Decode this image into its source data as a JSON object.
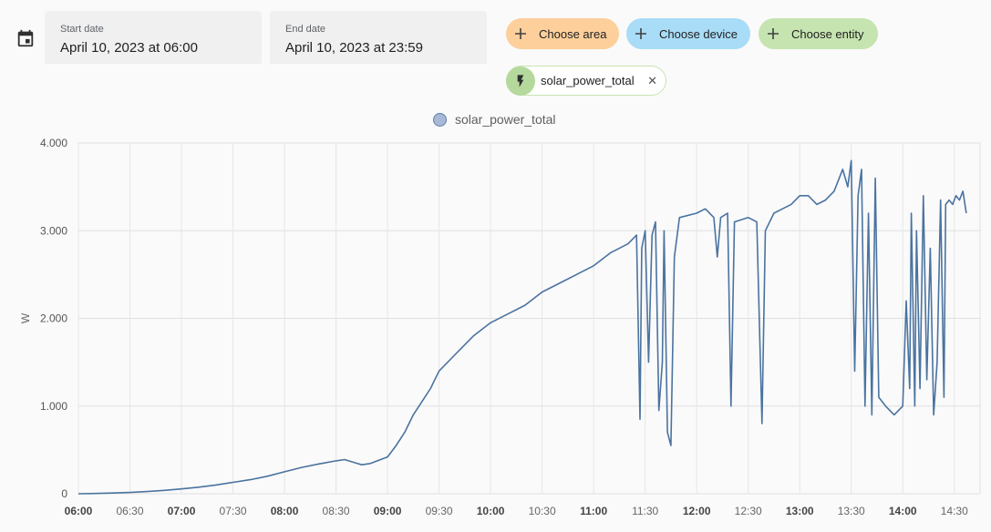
{
  "date_picker": {
    "start": {
      "label": "Start date",
      "value": "April 10, 2023 at 06:00"
    },
    "end": {
      "label": "End date",
      "value": "April 10, 2023 at 23:59"
    }
  },
  "target_picker": {
    "area_label": "Choose area",
    "device_label": "Choose device",
    "entity_label": "Choose entity",
    "selected_entity": "solar_power_total"
  },
  "colors": {
    "area": "#fdcf9b",
    "device": "#a8dcf7",
    "entity": "#c6e4b0",
    "series": "#4a73a0"
  },
  "chart_data": {
    "type": "line",
    "ylabel": "W",
    "ylim": [
      0,
      4000
    ],
    "yticks": [
      0,
      1000,
      2000,
      3000,
      4000
    ],
    "ytick_labels": [
      "0",
      "1.000",
      "2.000",
      "3.000",
      "4.000"
    ],
    "xlim": [
      "06:00",
      "14:45"
    ],
    "xticks": [
      "06:00",
      "06:30",
      "07:00",
      "07:30",
      "08:00",
      "08:30",
      "09:00",
      "09:30",
      "10:00",
      "10:30",
      "11:00",
      "11:30",
      "12:00",
      "12:30",
      "13:00",
      "13:30",
      "14:00",
      "14:30"
    ],
    "bold_xticks": [
      "06:00",
      "07:00",
      "08:00",
      "09:00",
      "10:00",
      "11:00",
      "12:00",
      "13:00",
      "14:00"
    ],
    "grid": true,
    "legend_position": "top",
    "series": [
      {
        "name": "solar_power_total",
        "points": [
          [
            "06:00",
            0
          ],
          [
            "06:10",
            3
          ],
          [
            "06:20",
            8
          ],
          [
            "06:30",
            15
          ],
          [
            "06:40",
            25
          ],
          [
            "06:50",
            38
          ],
          [
            "07:00",
            55
          ],
          [
            "07:10",
            75
          ],
          [
            "07:20",
            100
          ],
          [
            "07:30",
            130
          ],
          [
            "07:40",
            160
          ],
          [
            "07:50",
            200
          ],
          [
            "08:00",
            250
          ],
          [
            "08:10",
            300
          ],
          [
            "08:20",
            340
          ],
          [
            "08:30",
            375
          ],
          [
            "08:35",
            390
          ],
          [
            "08:40",
            360
          ],
          [
            "08:45",
            330
          ],
          [
            "08:50",
            345
          ],
          [
            "09:00",
            420
          ],
          [
            "09:05",
            550
          ],
          [
            "09:10",
            700
          ],
          [
            "09:15",
            900
          ],
          [
            "09:20",
            1050
          ],
          [
            "09:25",
            1200
          ],
          [
            "09:30",
            1400
          ],
          [
            "09:40",
            1600
          ],
          [
            "09:50",
            1800
          ],
          [
            "10:00",
            1950
          ],
          [
            "10:10",
            2050
          ],
          [
            "10:20",
            2150
          ],
          [
            "10:30",
            2300
          ],
          [
            "10:40",
            2400
          ],
          [
            "10:50",
            2500
          ],
          [
            "11:00",
            2600
          ],
          [
            "11:10",
            2750
          ],
          [
            "11:20",
            2850
          ],
          [
            "11:25",
            2950
          ],
          [
            "11:27",
            850
          ],
          [
            "11:28",
            2800
          ],
          [
            "11:30",
            3000
          ],
          [
            "11:32",
            1500
          ],
          [
            "11:34",
            2950
          ],
          [
            "11:36",
            3100
          ],
          [
            "11:38",
            950
          ],
          [
            "11:40",
            1500
          ],
          [
            "11:41",
            3000
          ],
          [
            "11:43",
            700
          ],
          [
            "11:45",
            550
          ],
          [
            "11:47",
            2700
          ],
          [
            "11:50",
            3150
          ],
          [
            "12:00",
            3200
          ],
          [
            "12:05",
            3250
          ],
          [
            "12:10",
            3150
          ],
          [
            "12:12",
            2700
          ],
          [
            "12:14",
            3150
          ],
          [
            "12:18",
            3200
          ],
          [
            "12:20",
            1000
          ],
          [
            "12:22",
            3100
          ],
          [
            "12:30",
            3150
          ],
          [
            "12:35",
            3100
          ],
          [
            "12:38",
            800
          ],
          [
            "12:40",
            3000
          ],
          [
            "12:45",
            3200
          ],
          [
            "12:50",
            3250
          ],
          [
            "12:55",
            3300
          ],
          [
            "13:00",
            3400
          ],
          [
            "13:05",
            3400
          ],
          [
            "13:10",
            3300
          ],
          [
            "13:15",
            3350
          ],
          [
            "13:20",
            3450
          ],
          [
            "13:25",
            3700
          ],
          [
            "13:28",
            3500
          ],
          [
            "13:30",
            3800
          ],
          [
            "13:32",
            1400
          ],
          [
            "13:34",
            3400
          ],
          [
            "13:36",
            3700
          ],
          [
            "13:38",
            1000
          ],
          [
            "13:40",
            3200
          ],
          [
            "13:42",
            900
          ],
          [
            "13:44",
            3600
          ],
          [
            "13:46",
            1100
          ],
          [
            "13:50",
            1000
          ],
          [
            "13:55",
            900
          ],
          [
            "14:00",
            1000
          ],
          [
            "14:02",
            2200
          ],
          [
            "14:04",
            1200
          ],
          [
            "14:05",
            3200
          ],
          [
            "14:07",
            1000
          ],
          [
            "14:08",
            3000
          ],
          [
            "14:10",
            1200
          ],
          [
            "14:12",
            3400
          ],
          [
            "14:14",
            1300
          ],
          [
            "14:16",
            2800
          ],
          [
            "14:18",
            900
          ],
          [
            "14:20",
            1500
          ],
          [
            "14:22",
            3350
          ],
          [
            "14:24",
            1100
          ],
          [
            "14:25",
            3300
          ],
          [
            "14:27",
            3350
          ],
          [
            "14:29",
            3300
          ],
          [
            "14:31",
            3400
          ],
          [
            "14:33",
            3350
          ],
          [
            "14:35",
            3450
          ],
          [
            "14:37",
            3200
          ]
        ]
      }
    ]
  }
}
